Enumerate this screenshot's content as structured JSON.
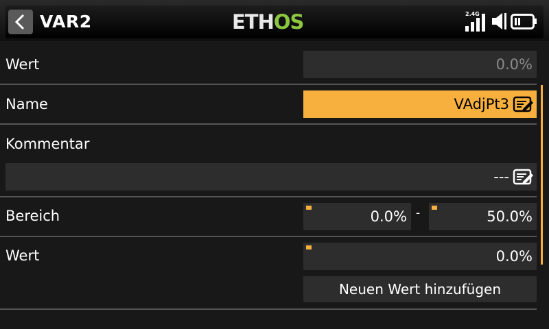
{
  "header": {
    "back_icon": "chevron-left-icon",
    "title": "VAR2",
    "logo_part1": "ETH",
    "logo_part2": "OS",
    "signal_band": "2.4G",
    "signal_icon": "signal-bars-icon",
    "volume_icon": "speaker-icon",
    "battery_icon": "battery-icon",
    "logo_accent_color": "#8dc63f"
  },
  "form": {
    "wert_top_label": "Wert",
    "wert_top_value": "0.0%",
    "name_label": "Name",
    "name_value": "VAdjPt3",
    "kommentar_label": "Kommentar",
    "kommentar_value": "---",
    "bereich_label": "Bereich",
    "bereich_min": "0.0%",
    "bereich_separator": "-",
    "bereich_max": "50.0%",
    "wert_label": "Wert",
    "wert_value": "0.0%",
    "add_value_button": "Neuen Wert hinzufügen",
    "accent_color": "#f7b03d"
  }
}
